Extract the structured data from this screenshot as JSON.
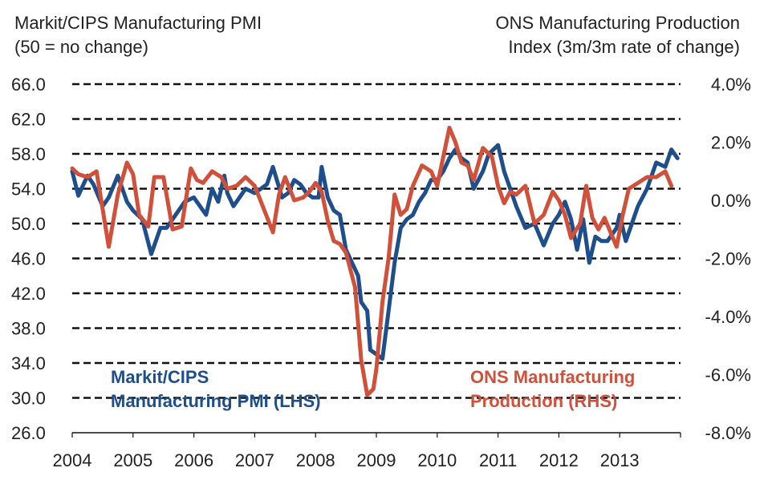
{
  "chart_data": {
    "type": "line",
    "left_axis_title": [
      "Markit/CIPS Manufacturing PMI",
      "(50 = no change)"
    ],
    "right_axis_title": [
      "ONS Manufacturing Production",
      "Index (3m/3m rate of change)"
    ],
    "x_tick_labels": [
      "2004",
      "2005",
      "2006",
      "2007",
      "2008",
      "2009",
      "2010",
      "2011",
      "2012",
      "2013"
    ],
    "x_range": [
      2004.0,
      2014.0
    ],
    "y_left": {
      "range": [
        26.0,
        66.0
      ],
      "ticks": [
        "26.0",
        "30.0",
        "34.0",
        "38.0",
        "42.0",
        "46.0",
        "50.0",
        "54.0",
        "58.0",
        "62.0",
        "66.0"
      ]
    },
    "y_right": {
      "range": [
        -8.0,
        4.0
      ],
      "ticks": [
        "-8.0%",
        "-6.0%",
        "-4.0%",
        "-2.0%",
        "0.0%",
        "2.0%",
        "4.0%"
      ]
    },
    "grid": "dashed horizontal",
    "series": [
      {
        "name": "Markit/CIPS Manufacturing PMI (LHS)",
        "axis": "left",
        "color": "#1f4e8c",
        "label_lines": [
          "Markit/CIPS",
          "Manufacturing PMI (LHS)"
        ],
        "x": [
          2004.0,
          2004.1,
          2004.25,
          2004.35,
          2004.5,
          2004.6,
          2004.75,
          2004.9,
          2005.0,
          2005.15,
          2005.3,
          2005.45,
          2005.55,
          2005.7,
          2005.85,
          2006.0,
          2006.1,
          2006.2,
          2006.3,
          2006.4,
          2006.5,
          2006.55,
          2006.65,
          2006.75,
          2006.85,
          2007.0,
          2007.1,
          2007.2,
          2007.3,
          2007.45,
          2007.55,
          2007.65,
          2007.75,
          2007.85,
          2007.95,
          2008.05,
          2008.1,
          2008.2,
          2008.3,
          2008.4,
          2008.5,
          2008.6,
          2008.7,
          2008.75,
          2008.85,
          2008.9,
          2009.0,
          2009.1,
          2009.2,
          2009.3,
          2009.4,
          2009.5,
          2009.6,
          2009.7,
          2009.8,
          2009.9,
          2010.0,
          2010.1,
          2010.2,
          2010.3,
          2010.4,
          2010.5,
          2010.6,
          2010.75,
          2010.85,
          2011.0,
          2011.1,
          2011.2,
          2011.3,
          2011.45,
          2011.6,
          2011.75,
          2011.9,
          2012.0,
          2012.1,
          2012.2,
          2012.3,
          2012.4,
          2012.5,
          2012.6,
          2012.7,
          2012.8,
          2012.95,
          2013.0,
          2013.1,
          2013.2,
          2013.3,
          2013.45,
          2013.6,
          2013.75,
          2013.85,
          2013.95
        ],
        "y": [
          56.0,
          53.2,
          55.5,
          54.5,
          52.0,
          53.0,
          55.5,
          52.5,
          51.5,
          50.5,
          46.5,
          49.5,
          49.5,
          51.0,
          52.5,
          53.0,
          52.0,
          51.0,
          54.0,
          52.5,
          55.5,
          53.5,
          52.0,
          53.0,
          54.0,
          53.5,
          54.0,
          54.5,
          56.5,
          53.0,
          53.5,
          55.0,
          54.5,
          53.5,
          53.0,
          53.0,
          56.5,
          53.0,
          51.5,
          51.0,
          47.0,
          45.5,
          44.0,
          41.0,
          40.0,
          35.5,
          35.0,
          34.5,
          40.0,
          45.5,
          49.5,
          50.5,
          51.0,
          52.5,
          53.5,
          55.0,
          55.0,
          56.0,
          57.5,
          58.5,
          57.5,
          57.0,
          54.0,
          56.0,
          58.0,
          59.0,
          56.0,
          54.0,
          52.0,
          49.5,
          50.0,
          47.5,
          50.0,
          51.0,
          52.5,
          50.5,
          47.0,
          50.5,
          45.5,
          48.5,
          48.0,
          48.0,
          49.5,
          51.0,
          48.0,
          50.0,
          52.0,
          54.0,
          57.0,
          56.5,
          58.5,
          57.5
        ]
      },
      {
        "name": "ONS Manufacturing Production (RHS)",
        "axis": "right",
        "color": "#d0503a",
        "label_lines": [
          "ONS Manufacturing",
          "Production (RHS)"
        ],
        "x": [
          2004.0,
          2004.1,
          2004.25,
          2004.4,
          2004.5,
          2004.6,
          2004.75,
          2004.9,
          2005.0,
          2005.1,
          2005.25,
          2005.35,
          2005.5,
          2005.65,
          2005.8,
          2005.95,
          2006.05,
          2006.15,
          2006.3,
          2006.45,
          2006.55,
          2006.7,
          2006.85,
          2007.0,
          2007.15,
          2007.3,
          2007.4,
          2007.5,
          2007.65,
          2007.8,
          2007.9,
          2008.0,
          2008.1,
          2008.2,
          2008.3,
          2008.4,
          2008.5,
          2008.65,
          2008.75,
          2008.85,
          2008.95,
          2009.0,
          2009.1,
          2009.2,
          2009.3,
          2009.4,
          2009.5,
          2009.6,
          2009.75,
          2009.9,
          2010.0,
          2010.1,
          2010.2,
          2010.3,
          2010.4,
          2010.5,
          2010.6,
          2010.75,
          2010.9,
          2011.0,
          2011.1,
          2011.2,
          2011.3,
          2011.45,
          2011.6,
          2011.75,
          2011.9,
          2012.0,
          2012.1,
          2012.2,
          2012.35,
          2012.45,
          2012.55,
          2012.65,
          2012.75,
          2012.85,
          2012.95,
          2013.05,
          2013.15,
          2013.3,
          2013.45,
          2013.6,
          2013.75,
          2013.85
        ],
        "y": [
          1.1,
          0.9,
          0.8,
          1.0,
          -0.3,
          -1.6,
          0.2,
          1.3,
          0.9,
          -0.5,
          -0.9,
          0.8,
          0.8,
          -1.0,
          -0.9,
          1.1,
          0.7,
          0.6,
          1.0,
          0.8,
          0.4,
          0.5,
          0.8,
          0.5,
          -0.3,
          -1.1,
          0.2,
          0.8,
          0.0,
          0.1,
          0.3,
          0.6,
          0.3,
          -0.7,
          -1.4,
          -1.5,
          -1.8,
          -3.0,
          -5.5,
          -6.7,
          -6.5,
          -5.8,
          -3.5,
          -2.0,
          0.2,
          -0.5,
          -0.3,
          0.5,
          1.2,
          1.0,
          0.5,
          1.5,
          2.5,
          2.0,
          1.3,
          1.2,
          0.7,
          1.8,
          1.5,
          0.5,
          -0.1,
          0.3,
          0.2,
          0.5,
          -0.8,
          -0.5,
          0.3,
          0.0,
          -0.5,
          -1.3,
          -0.8,
          0.5,
          -0.6,
          -1.0,
          -0.6,
          -1.1,
          -1.6,
          -0.5,
          0.4,
          0.6,
          0.8,
          0.8,
          1.0,
          0.5
        ]
      }
    ]
  }
}
